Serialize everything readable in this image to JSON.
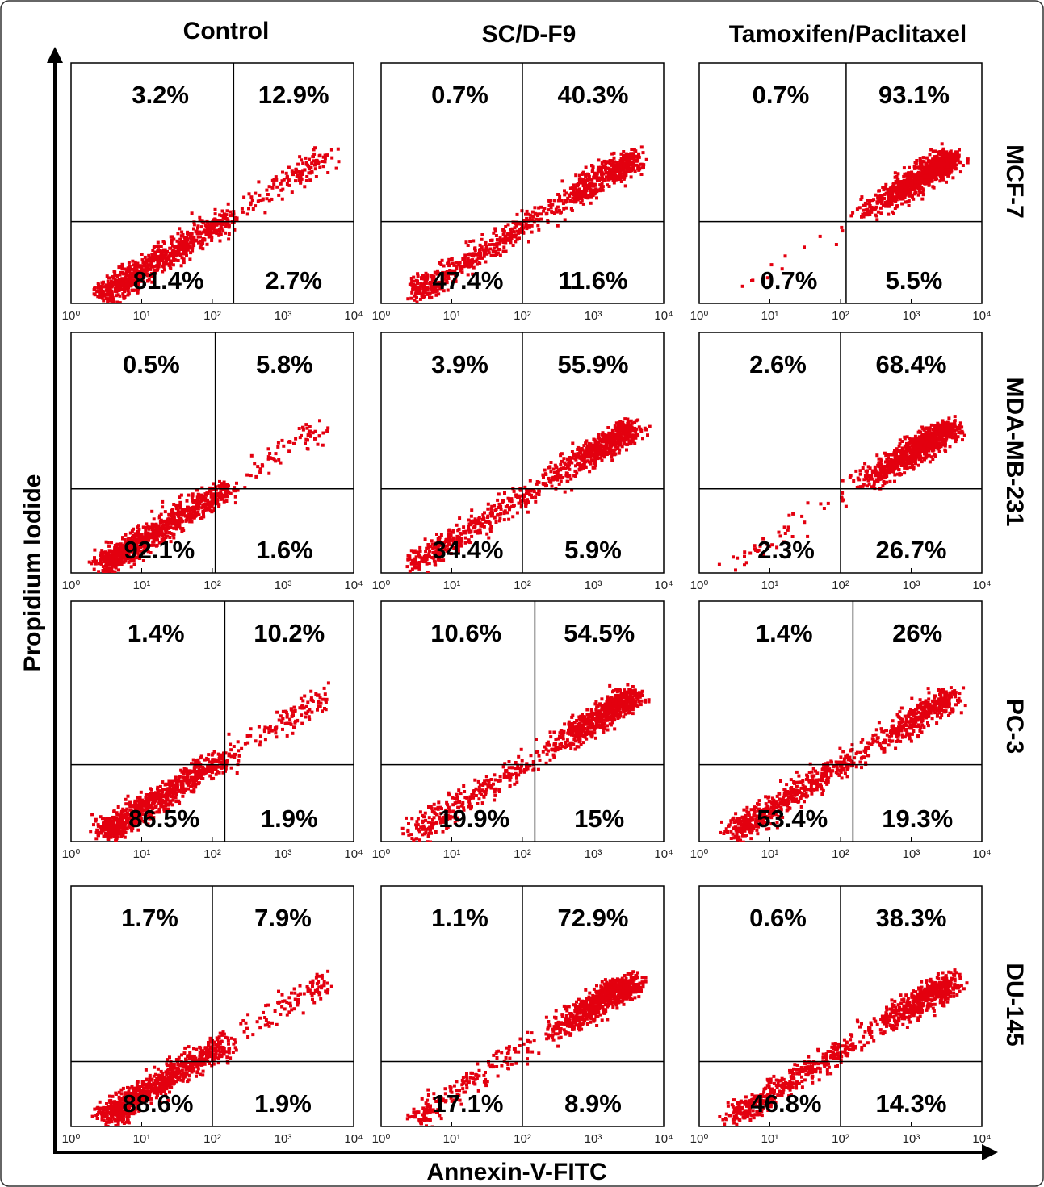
{
  "column_titles": [
    "Control",
    "SC/D-F9",
    "Tamoxifen/Paclitaxel"
  ],
  "row_labels": [
    "MCF-7",
    "MDA-MB-231",
    "PC-3",
    "DU-145"
  ],
  "y_label": "Propidium Iodide",
  "x_label": "Annexin-V-FITC",
  "chart_data": [
    {
      "type": "scatter",
      "log_x": true,
      "xlim": [
        1,
        10000
      ],
      "xticks": [
        {
          "value": 1,
          "label": "10⁰"
        },
        {
          "value": 10,
          "label": "10¹"
        },
        {
          "value": 100,
          "label": "10²"
        },
        {
          "value": 1000,
          "label": "10³"
        },
        {
          "value": 10000,
          "label": "10⁴"
        }
      ],
      "gate_x": 200,
      "color": "#e3000f",
      "quadrant_values": [
        3.2,
        12.9,
        81.4,
        2.7
      ],
      "quadrant_labels": [
        "3.2%",
        "12.9%",
        "81.4%",
        "2.7%"
      ]
    },
    {
      "type": "scatter",
      "log_x": true,
      "xlim": [
        1,
        10000
      ],
      "xticks": [
        {
          "value": 1,
          "label": "10⁰"
        },
        {
          "value": 10,
          "label": "10¹"
        },
        {
          "value": 100,
          "label": "10²"
        },
        {
          "value": 1000,
          "label": "10³"
        },
        {
          "value": 10000,
          "label": "10⁴"
        }
      ],
      "gate_x": 100,
      "color": "#e3000f",
      "quadrant_values": [
        0.7,
        40.3,
        47.4,
        11.6
      ],
      "quadrant_labels": [
        "0.7%",
        "40.3%",
        "47.4%",
        "11.6%"
      ]
    },
    {
      "type": "scatter",
      "log_x": true,
      "xlim": [
        1,
        10000
      ],
      "xticks": [
        {
          "value": 1,
          "label": "10⁰"
        },
        {
          "value": 10,
          "label": "10¹"
        },
        {
          "value": 100,
          "label": "10²"
        },
        {
          "value": 1000,
          "label": "10³"
        },
        {
          "value": 10000,
          "label": "10⁴"
        }
      ],
      "gate_x": 120,
      "color": "#e3000f",
      "quadrant_values": [
        0.7,
        93.1,
        0.7,
        5.5
      ],
      "quadrant_labels": [
        "0.7%",
        "93.1%",
        "0.7%",
        "5.5%"
      ]
    },
    {
      "type": "scatter",
      "log_x": true,
      "xlim": [
        1,
        10000
      ],
      "xticks": [
        {
          "value": 1,
          "label": "10⁰"
        },
        {
          "value": 10,
          "label": "10¹"
        },
        {
          "value": 100,
          "label": "10²"
        },
        {
          "value": 1000,
          "label": "10³"
        },
        {
          "value": 10000,
          "label": "10⁴"
        }
      ],
      "gate_x": 110,
      "color": "#e3000f",
      "quadrant_values": [
        0.5,
        5.8,
        92.1,
        1.6
      ],
      "quadrant_labels": [
        "0.5%",
        "5.8%",
        "92.1%",
        "1.6%"
      ]
    },
    {
      "type": "scatter",
      "log_x": true,
      "xlim": [
        1,
        10000
      ],
      "xticks": [
        {
          "value": 1,
          "label": "10⁰"
        },
        {
          "value": 10,
          "label": "10¹"
        },
        {
          "value": 100,
          "label": "10²"
        },
        {
          "value": 1000,
          "label": "10³"
        },
        {
          "value": 10000,
          "label": "10⁴"
        }
      ],
      "gate_x": 100,
      "color": "#e3000f",
      "quadrant_values": [
        3.9,
        55.9,
        34.4,
        5.9
      ],
      "quadrant_labels": [
        "3.9%",
        "55.9%",
        "34.4%",
        "5.9%"
      ]
    },
    {
      "type": "scatter",
      "log_x": true,
      "xlim": [
        1,
        10000
      ],
      "xticks": [
        {
          "value": 1,
          "label": "10⁰"
        },
        {
          "value": 10,
          "label": "10¹"
        },
        {
          "value": 100,
          "label": "10²"
        },
        {
          "value": 1000,
          "label": "10³"
        },
        {
          "value": 10000,
          "label": "10⁴"
        }
      ],
      "gate_x": 100,
      "color": "#e3000f",
      "quadrant_values": [
        2.6,
        68.4,
        2.3,
        26.7
      ],
      "quadrant_labels": [
        "2.6%",
        "68.4%",
        "2.3%",
        "26.7%"
      ]
    },
    {
      "type": "scatter",
      "log_x": true,
      "xlim": [
        1,
        10000
      ],
      "xticks": [
        {
          "value": 1,
          "label": "10⁰"
        },
        {
          "value": 10,
          "label": "10¹"
        },
        {
          "value": 100,
          "label": "10²"
        },
        {
          "value": 1000,
          "label": "10³"
        },
        {
          "value": 10000,
          "label": "10⁴"
        }
      ],
      "gate_x": 150,
      "color": "#e3000f",
      "quadrant_values": [
        1.4,
        10.2,
        86.5,
        1.9
      ],
      "quadrant_labels": [
        "1.4%",
        "10.2%",
        "86.5%",
        "1.9%"
      ]
    },
    {
      "type": "scatter",
      "log_x": true,
      "xlim": [
        1,
        10000
      ],
      "xticks": [
        {
          "value": 1,
          "label": "10⁰"
        },
        {
          "value": 10,
          "label": "10¹"
        },
        {
          "value": 100,
          "label": "10²"
        },
        {
          "value": 1000,
          "label": "10³"
        },
        {
          "value": 10000,
          "label": "10⁴"
        }
      ],
      "gate_x": 150,
      "color": "#e3000f",
      "quadrant_values": [
        10.6,
        54.5,
        19.9,
        15
      ],
      "quadrant_labels": [
        "10.6%",
        "54.5%",
        "19.9%",
        "15%"
      ]
    },
    {
      "type": "scatter",
      "log_x": true,
      "xlim": [
        1,
        10000
      ],
      "xticks": [
        {
          "value": 1,
          "label": "10⁰"
        },
        {
          "value": 10,
          "label": "10¹"
        },
        {
          "value": 100,
          "label": "10²"
        },
        {
          "value": 1000,
          "label": "10³"
        },
        {
          "value": 10000,
          "label": "10⁴"
        }
      ],
      "gate_x": 150,
      "color": "#e3000f",
      "quadrant_values": [
        1.4,
        26,
        53.4,
        19.3
      ],
      "quadrant_labels": [
        "1.4%",
        "26%",
        "53.4%",
        "19.3%"
      ]
    },
    {
      "type": "scatter",
      "log_x": true,
      "xlim": [
        1,
        10000
      ],
      "xticks": [
        {
          "value": 1,
          "label": "10⁰"
        },
        {
          "value": 10,
          "label": "10¹"
        },
        {
          "value": 100,
          "label": "10²"
        },
        {
          "value": 1000,
          "label": "10³"
        },
        {
          "value": 10000,
          "label": "10⁴"
        }
      ],
      "gate_x": 100,
      "color": "#e3000f",
      "quadrant_values": [
        1.7,
        7.9,
        88.6,
        1.9
      ],
      "quadrant_labels": [
        "1.7%",
        "7.9%",
        "88.6%",
        "1.9%"
      ]
    },
    {
      "type": "scatter",
      "log_x": true,
      "xlim": [
        1,
        10000
      ],
      "xticks": [
        {
          "value": 1,
          "label": "10⁰"
        },
        {
          "value": 10,
          "label": "10¹"
        },
        {
          "value": 100,
          "label": "10²"
        },
        {
          "value": 1000,
          "label": "10³"
        },
        {
          "value": 10000,
          "label": "10⁴"
        }
      ],
      "gate_x": 100,
      "color": "#e3000f",
      "quadrant_values": [
        1.1,
        72.9,
        17.1,
        8.9
      ],
      "quadrant_labels": [
        "1.1%",
        "72.9%",
        "17.1%",
        "8.9%"
      ]
    },
    {
      "type": "scatter",
      "log_x": true,
      "xlim": [
        1,
        10000
      ],
      "xticks": [
        {
          "value": 1,
          "label": "10⁰"
        },
        {
          "value": 10,
          "label": "10¹"
        },
        {
          "value": 100,
          "label": "10²"
        },
        {
          "value": 1000,
          "label": "10³"
        },
        {
          "value": 10000,
          "label": "10⁴"
        }
      ],
      "gate_x": 100,
      "color": "#e3000f",
      "quadrant_values": [
        0.6,
        38.3,
        46.8,
        14.3
      ],
      "quadrant_labels": [
        "0.6%",
        "38.3%",
        "46.8%",
        "14.3%"
      ]
    }
  ]
}
